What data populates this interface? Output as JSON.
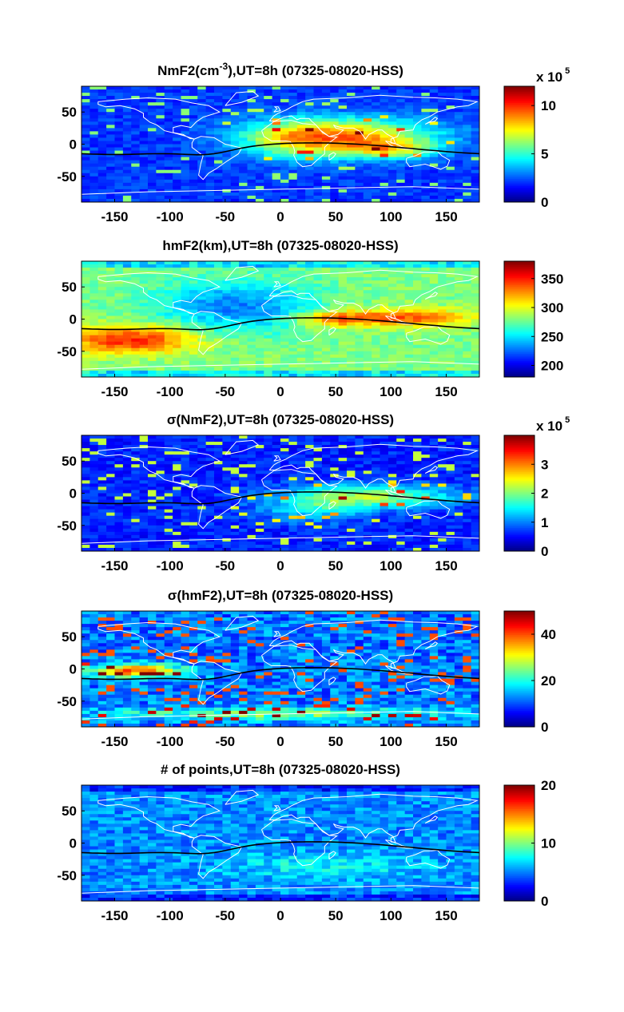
{
  "figure": {
    "background": "#ffffff",
    "colormap": "jet",
    "overlay": {
      "coastline_color": "#ffffff",
      "magnetic_equator_color": "#000000"
    }
  },
  "chart_data": [
    {
      "type": "heatmap",
      "title_main": "NmF2(cm",
      "title_sup": "-3",
      "title_rest": "),UT=8h (07325-08020-HSS)",
      "xlim": [
        -180,
        180
      ],
      "ylim": [
        -90,
        90
      ],
      "xticks": [
        -150,
        -100,
        -50,
        0,
        50,
        100,
        150
      ],
      "yticks": [
        50,
        0,
        -50
      ],
      "colorbar": {
        "clim": [
          0,
          12
        ],
        "ticks": [
          0,
          5,
          10
        ],
        "exponent_base": "x 10",
        "exponent": "5"
      },
      "pattern": "nmf2",
      "magnetic_equator": true
    },
    {
      "type": "heatmap",
      "title_main": "hmF2(km),UT=8h (07325-08020-HSS)",
      "xlim": [
        -180,
        180
      ],
      "ylim": [
        -90,
        90
      ],
      "xticks": [
        -150,
        -100,
        -50,
        0,
        50,
        100,
        150
      ],
      "yticks": [
        50,
        0,
        -50
      ],
      "colorbar": {
        "clim": [
          180,
          380
        ],
        "ticks": [
          200,
          250,
          300,
          350
        ]
      },
      "pattern": "hmf2",
      "magnetic_equator": true
    },
    {
      "type": "heatmap",
      "title_main": "σ(NmF2),UT=8h (07325-08020-HSS)",
      "xlim": [
        -180,
        180
      ],
      "ylim": [
        -90,
        90
      ],
      "xticks": [
        -150,
        -100,
        -50,
        0,
        50,
        100,
        150
      ],
      "yticks": [
        50,
        0,
        -50
      ],
      "colorbar": {
        "clim": [
          0,
          4
        ],
        "ticks": [
          0,
          1,
          2,
          3
        ],
        "exponent_base": "x 10",
        "exponent": "5"
      },
      "pattern": "signm",
      "magnetic_equator": true
    },
    {
      "type": "heatmap",
      "title_main": "σ(hmF2),UT=8h (07325-08020-HSS)",
      "xlim": [
        -180,
        180
      ],
      "ylim": [
        -90,
        90
      ],
      "xticks": [
        -150,
        -100,
        -50,
        0,
        50,
        100,
        150
      ],
      "yticks": [
        50,
        0,
        -50
      ],
      "colorbar": {
        "clim": [
          0,
          50
        ],
        "ticks": [
          0,
          20,
          40
        ]
      },
      "pattern": "sighm",
      "magnetic_equator": true
    },
    {
      "type": "heatmap",
      "title_main": "# of points,UT=8h (07325-08020-HSS)",
      "xlim": [
        -180,
        180
      ],
      "ylim": [
        -90,
        90
      ],
      "xticks": [
        -150,
        -100,
        -50,
        0,
        50,
        100,
        150
      ],
      "yticks": [
        50,
        0,
        -50
      ],
      "colorbar": {
        "clim": [
          0,
          20
        ],
        "ticks": [
          0,
          10,
          20
        ]
      },
      "pattern": "npts",
      "magnetic_equator": true
    }
  ]
}
